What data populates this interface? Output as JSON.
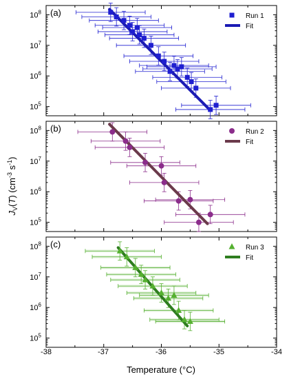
{
  "chart_data": [
    {
      "type": "scatter",
      "panel_label": "(a)",
      "xlim": [
        -38,
        -34
      ],
      "y_scale": "log",
      "ylim": [
        50000,
        200000000
      ],
      "legend": {
        "placement": "top-right"
      },
      "series": [
        {
          "name": "Run 1",
          "marker": "square",
          "color": "#1f1fd0",
          "points": [
            {
              "x": -36.88,
              "y": 120000000,
              "xerr": 0.6
            },
            {
              "x": -36.78,
              "y": 85000000,
              "xerr": 0.6
            },
            {
              "x": -36.65,
              "y": 65000000,
              "xerr": 0.6
            },
            {
              "x": -36.55,
              "y": 45000000,
              "xerr": 0.6
            },
            {
              "x": -36.5,
              "y": 28000000,
              "xerr": 0.6
            },
            {
              "x": -36.42,
              "y": 38000000,
              "xerr": 0.6
            },
            {
              "x": -36.38,
              "y": 22000000,
              "xerr": 0.6
            },
            {
              "x": -36.3,
              "y": 17000000,
              "xerr": 0.6
            },
            {
              "x": -36.18,
              "y": 10000000,
              "xerr": 0.6
            },
            {
              "x": -36.05,
              "y": 4500000,
              "xerr": 0.6
            },
            {
              "x": -35.95,
              "y": 3000000,
              "xerr": 0.6
            },
            {
              "x": -35.85,
              "y": 1400000,
              "xerr": 0.6
            },
            {
              "x": -35.78,
              "y": 2200000,
              "xerr": 0.6
            },
            {
              "x": -35.72,
              "y": 1700000,
              "xerr": 0.6
            },
            {
              "x": -35.65,
              "y": 2000000,
              "xerr": 0.6
            },
            {
              "x": -35.55,
              "y": 900000,
              "xerr": 0.6
            },
            {
              "x": -35.48,
              "y": 650000,
              "xerr": 0.6
            },
            {
              "x": -35.4,
              "y": 400000,
              "xerr": 0.6
            },
            {
              "x": -35.15,
              "y": 80000,
              "xerr": 0.6
            },
            {
              "x": -35.05,
              "y": 110000,
              "xerr": 0.6
            }
          ]
        },
        {
          "name": "Fit",
          "type": "line",
          "color": "#1a1ab4",
          "x": [
            -36.9,
            -35.15
          ],
          "y": [
            150000000,
            75000
          ]
        }
      ]
    },
    {
      "type": "scatter",
      "panel_label": "(b)",
      "xlim": [
        -38,
        -34
      ],
      "y_scale": "log",
      "ylim": [
        50000,
        200000000
      ],
      "legend": {
        "placement": "top-right"
      },
      "series": [
        {
          "name": "Run 2",
          "marker": "circle",
          "color": "#8b2d8b",
          "points": [
            {
              "x": -36.85,
              "y": 90000000,
              "xerr": 0.6
            },
            {
              "x": -36.62,
              "y": 45000000,
              "xerr": 0.6
            },
            {
              "x": -36.55,
              "y": 28000000,
              "xerr": 0.6
            },
            {
              "x": -36.28,
              "y": 9000000,
              "xerr": 0.6
            },
            {
              "x": -36.0,
              "y": 7000000,
              "xerr": 0.6
            },
            {
              "x": -35.95,
              "y": 2000000,
              "xerr": 0.6
            },
            {
              "x": -35.7,
              "y": 500000,
              "xerr": 0.6
            },
            {
              "x": -35.5,
              "y": 550000,
              "xerr": 0.6
            },
            {
              "x": -35.35,
              "y": 100000,
              "xerr": 0.6
            },
            {
              "x": -35.15,
              "y": 180000,
              "xerr": 0.6
            }
          ]
        },
        {
          "name": "Fit",
          "type": "line",
          "color": "#6b3a4b",
          "x": [
            -36.9,
            -35.2
          ],
          "y": [
            160000000,
            90000
          ]
        }
      ]
    },
    {
      "type": "scatter",
      "panel_label": "(c)",
      "xlim": [
        -38,
        -34
      ],
      "y_scale": "log",
      "ylim": [
        50000,
        200000000
      ],
      "legend": {
        "placement": "top-right"
      },
      "series": [
        {
          "name": "Run 3",
          "marker": "triangle",
          "color": "#55b030",
          "points": [
            {
              "x": -36.72,
              "y": 70000000,
              "xerr": 0.6
            },
            {
              "x": -36.6,
              "y": 45000000,
              "xerr": 0.6
            },
            {
              "x": -36.45,
              "y": 20000000,
              "xerr": 0.6
            },
            {
              "x": -36.35,
              "y": 12000000,
              "xerr": 0.6
            },
            {
              "x": -36.28,
              "y": 8000000,
              "xerr": 0.6
            },
            {
              "x": -36.15,
              "y": 5000000,
              "xerr": 0.6
            },
            {
              "x": -36.0,
              "y": 3000000,
              "xerr": 0.6
            },
            {
              "x": -35.88,
              "y": 2000000,
              "xerr": 0.6
            },
            {
              "x": -35.78,
              "y": 2500000,
              "xerr": 0.6
            },
            {
              "x": -35.7,
              "y": 800000,
              "xerr": 0.6
            },
            {
              "x": -35.6,
              "y": 400000,
              "xerr": 0.6
            },
            {
              "x": -35.5,
              "y": 350000,
              "xerr": 0.6
            }
          ]
        },
        {
          "name": "Fit",
          "type": "line",
          "color": "#2e7d1f",
          "x": [
            -36.75,
            -35.55
          ],
          "y": [
            90000000,
            250000
          ]
        }
      ]
    }
  ],
  "axes": {
    "xlabel": "Temperature (°C)",
    "ylabel": "J_V(T) (cm^-3 s^-1)",
    "ylabel_parts": {
      "j": "J",
      "v": "V",
      "open": "(",
      "t": "T",
      "close": ")",
      "unit_open": " (cm",
      "exp1": "-3",
      "s": " s",
      "exp2": "-1",
      "unit_close": ")"
    },
    "x_ticks": [
      "-38",
      "-37",
      "-36",
      "-35",
      "-34"
    ],
    "y_ticks": [
      {
        "base": "10",
        "exp": "5"
      },
      {
        "base": "10",
        "exp": "6"
      },
      {
        "base": "10",
        "exp": "7"
      },
      {
        "base": "10",
        "exp": "8"
      }
    ]
  }
}
